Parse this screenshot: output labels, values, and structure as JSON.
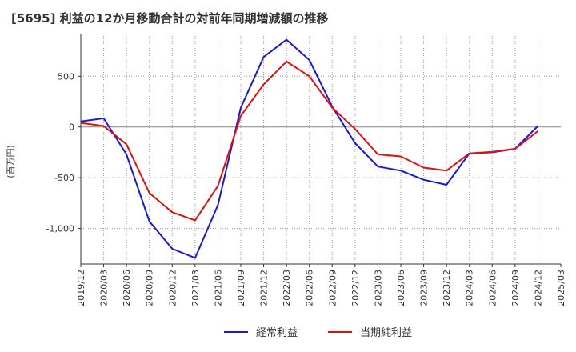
{
  "chart_data": {
    "type": "line",
    "title": "[5695]  利益の12か月移動合計の対前年同期増減額の推移",
    "ylabel": "(百万円)",
    "xlabel": "",
    "ylim": [
      -1350,
      920
    ],
    "yticks": [
      500,
      0,
      -500,
      -1000
    ],
    "ytick_labels": [
      "500",
      "0",
      "-500",
      "-1,000"
    ],
    "categories": [
      "2019/12",
      "2020/03",
      "2020/06",
      "2020/09",
      "2020/12",
      "2021/03",
      "2021/06",
      "2021/09",
      "2021/12",
      "2022/03",
      "2022/06",
      "2022/09",
      "2022/12",
      "2023/03",
      "2023/06",
      "2023/09",
      "2023/12",
      "2024/03",
      "2024/06",
      "2024/09",
      "2024/12",
      "2025/03"
    ],
    "grid": "dotted",
    "legend_position": "bottom-center",
    "series": [
      {
        "name": "経常利益",
        "color": "#1a1acc",
        "values": [
          55,
          85,
          -270,
          -930,
          -1200,
          -1290,
          -770,
          190,
          690,
          860,
          660,
          200,
          -160,
          -390,
          -430,
          -520,
          -570,
          -260,
          -250,
          -215,
          10,
          null
        ]
      },
      {
        "name": "当期純利益",
        "color": "#dd1111",
        "values": [
          40,
          10,
          -170,
          -650,
          -840,
          -920,
          -580,
          110,
          420,
          645,
          500,
          190,
          -20,
          -270,
          -290,
          -400,
          -430,
          -260,
          -245,
          -215,
          -40,
          null
        ]
      }
    ]
  }
}
